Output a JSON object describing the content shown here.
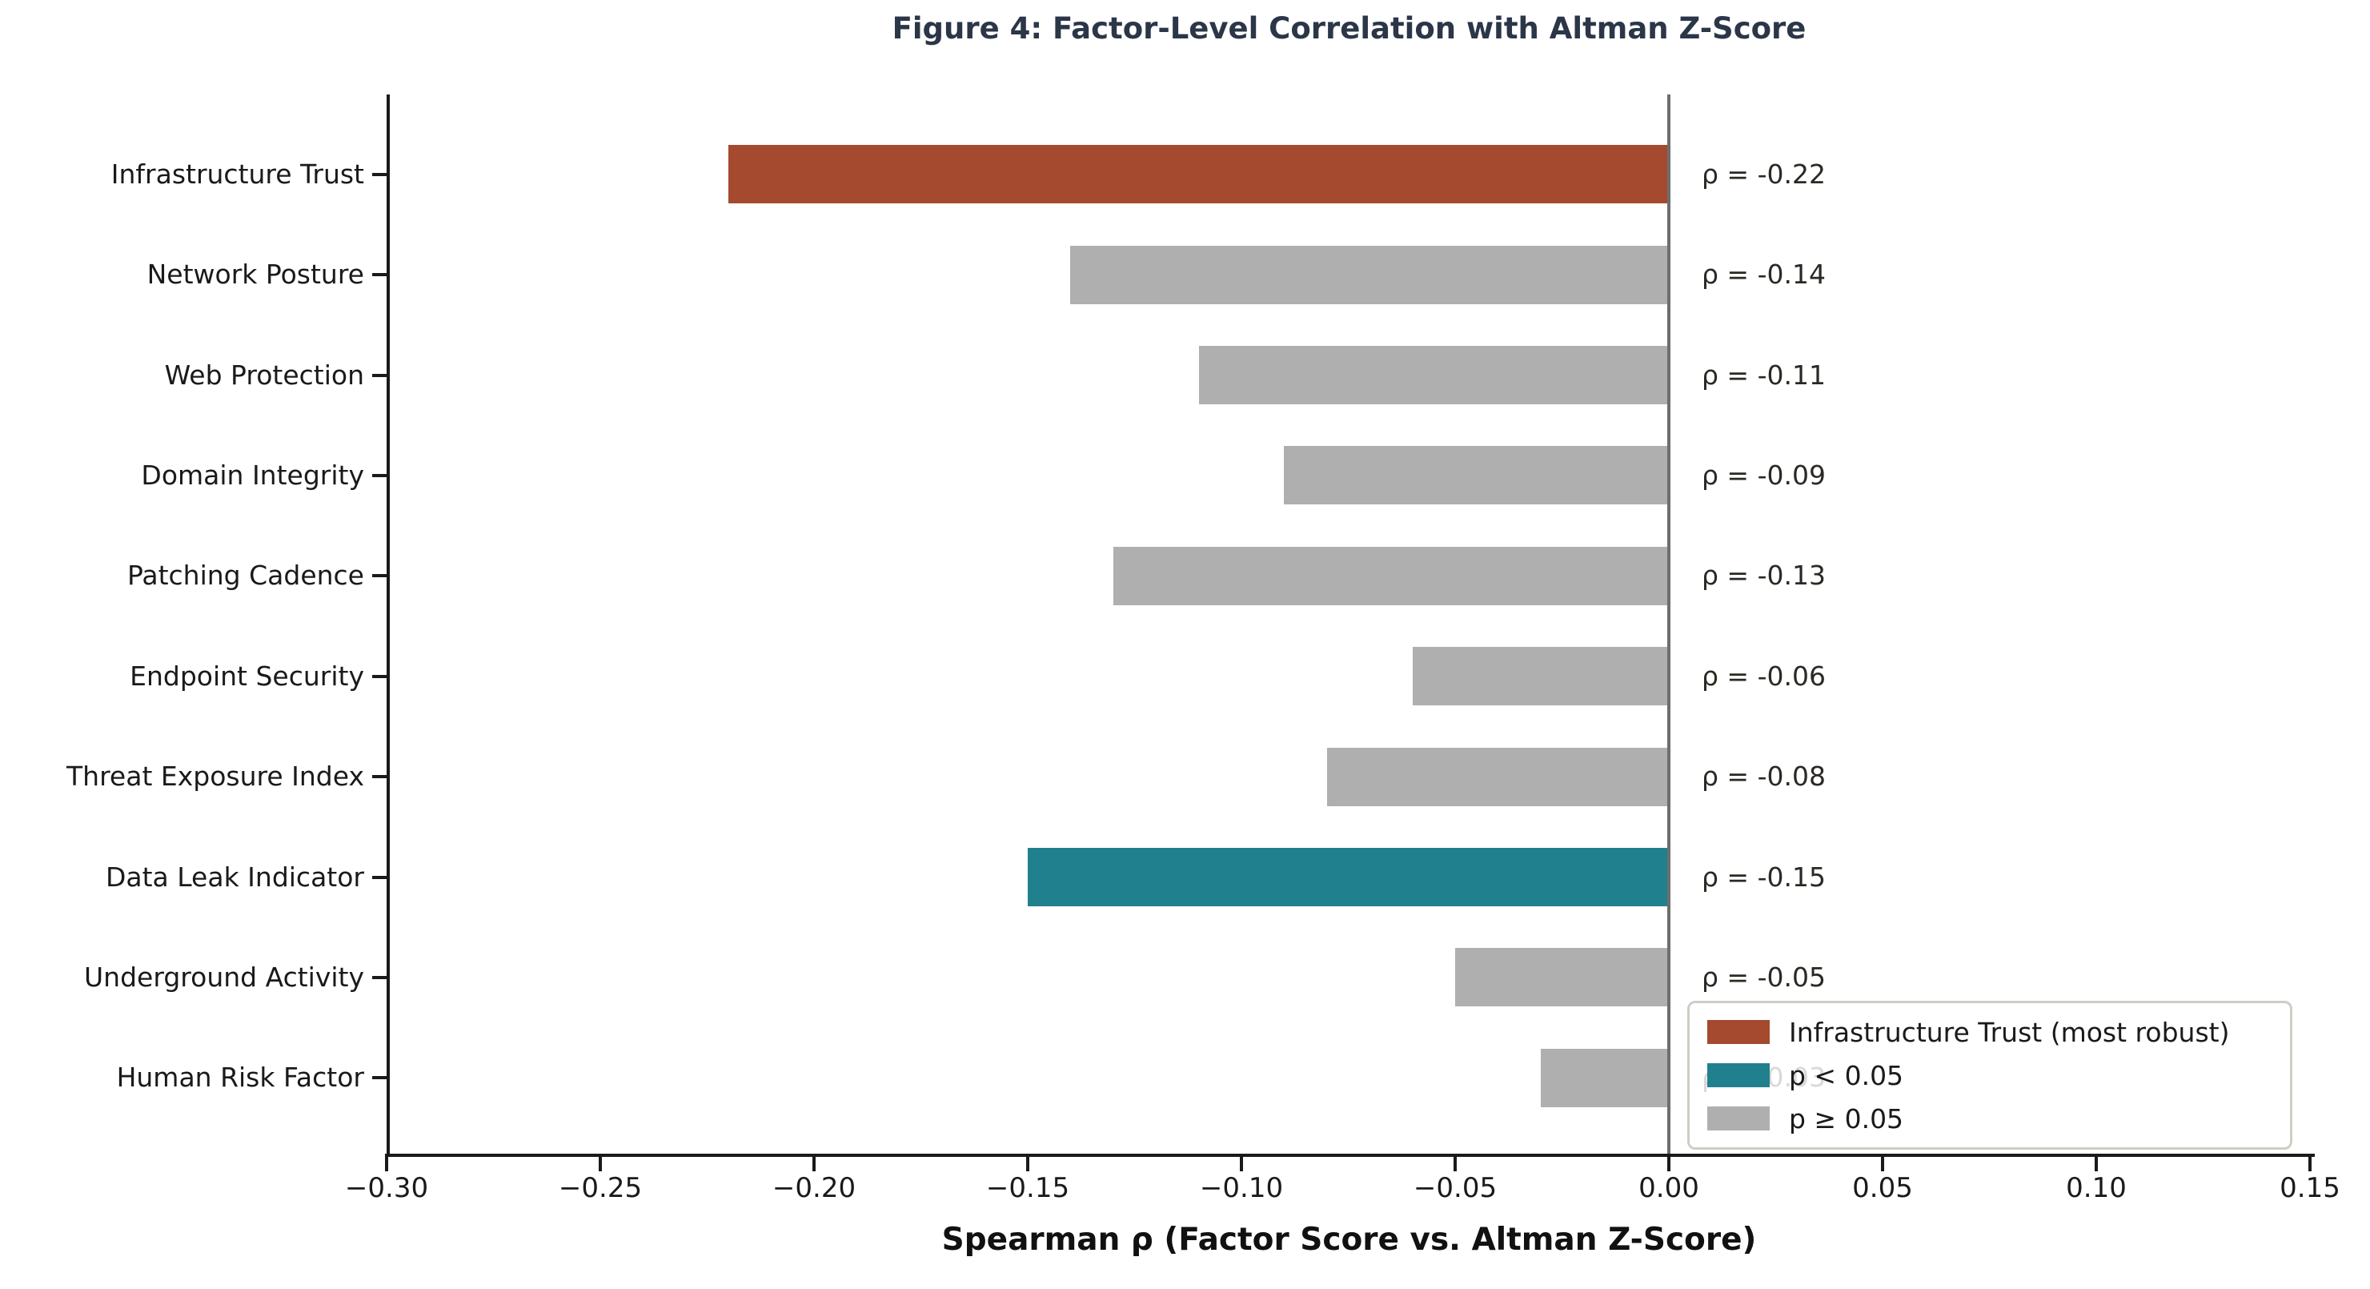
{
  "chart_data": {
    "type": "bar",
    "orientation": "horizontal",
    "title": "Figure 4: Factor-Level Correlation with Altman Z-Score",
    "xlabel": "Spearman ρ (Factor Score vs. Altman Z-Score)",
    "categories": [
      "Infrastructure Trust",
      "Network Posture",
      "Web Protection",
      "Domain Integrity",
      "Patching Cadence",
      "Endpoint Security",
      "Threat Exposure Index",
      "Data Leak Indicator",
      "Underground Activity",
      "Human Risk Factor"
    ],
    "values": [
      -0.22,
      -0.14,
      -0.11,
      -0.09,
      -0.13,
      -0.06,
      -0.08,
      -0.15,
      -0.05,
      -0.03
    ],
    "value_labels": [
      "ρ = -0.22",
      "ρ = -0.14",
      "ρ = -0.11",
      "ρ = -0.09",
      "ρ = -0.13",
      "ρ = -0.06",
      "ρ = -0.08",
      "ρ = -0.15",
      "ρ = -0.05",
      "ρ = -0.03"
    ],
    "bar_colors": [
      "#A5492F",
      "#AFAFAF",
      "#AFAFAF",
      "#AFAFAF",
      "#AFAFAF",
      "#AFAFAF",
      "#AFAFAF",
      "#21808D",
      "#AFAFAF",
      "#AFAFAF"
    ],
    "xlim": [
      -0.3,
      0.15
    ],
    "x_ticks": [
      -0.3,
      -0.25,
      -0.2,
      -0.15,
      -0.1,
      -0.05,
      0.0,
      0.05,
      0.1,
      0.15
    ],
    "x_tick_labels": [
      "−0.30",
      "−0.25",
      "−0.20",
      "−0.15",
      "−0.10",
      "−0.05",
      "0.00",
      "0.05",
      "0.10",
      "0.15"
    ],
    "zero_reference_line": 0.0,
    "grid": false,
    "legend": {
      "position": "lower right",
      "items": [
        {
          "label": "Infrastructure Trust (most robust)",
          "color": "#A5492F"
        },
        {
          "label": "p < 0.05",
          "color": "#21808D"
        },
        {
          "label": "p ≥ 0.05",
          "color": "#AFAFAF"
        }
      ]
    }
  },
  "style": {
    "title_color": "#2B3648",
    "text_color": "#1a1a1a",
    "annotation_color": "#2b2923",
    "axis_color": "#1a1a1a",
    "zero_line_color": "#6e6e6e",
    "legend_border_color": "#d0cdc5",
    "background_color": "#ffffff"
  }
}
